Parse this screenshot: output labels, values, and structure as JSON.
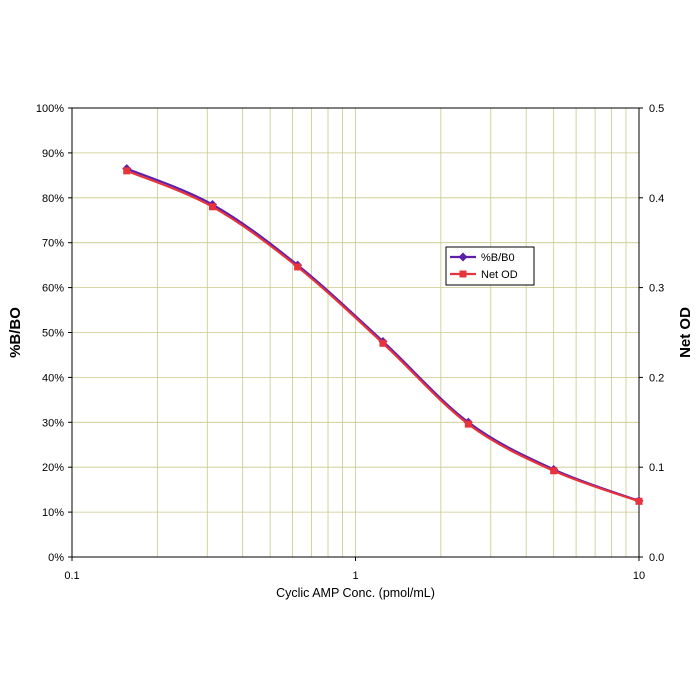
{
  "chart_data": {
    "type": "line",
    "x_scale": "log",
    "xlabel": "Cyclic AMP Conc. (pmol/mL)",
    "ylabel": "%B/BO",
    "y2label": "Net OD",
    "xlim": [
      0.1,
      10
    ],
    "ylim": [
      0,
      100
    ],
    "y2lim": [
      0,
      0.5
    ],
    "grid": true,
    "legend_position": "right-center",
    "x_ticks": [
      {
        "value": 0.1,
        "label": "0.1"
      },
      {
        "value": 1,
        "label": "1"
      },
      {
        "value": 10,
        "label": "10"
      }
    ],
    "y_ticks": [
      {
        "value": 0,
        "label": "0%"
      },
      {
        "value": 10,
        "label": "10%"
      },
      {
        "value": 20,
        "label": "20%"
      },
      {
        "value": 30,
        "label": "30%"
      },
      {
        "value": 40,
        "label": "40%"
      },
      {
        "value": 50,
        "label": "50%"
      },
      {
        "value": 60,
        "label": "60%"
      },
      {
        "value": 70,
        "label": "70%"
      },
      {
        "value": 80,
        "label": "80%"
      },
      {
        "value": 90,
        "label": "90%"
      },
      {
        "value": 100,
        "label": "100%"
      }
    ],
    "y2_ticks": [
      {
        "value": 0,
        "label": "0.0"
      },
      {
        "value": 0.1,
        "label": "0.1"
      },
      {
        "value": 0.2,
        "label": "0.2"
      },
      {
        "value": 0.3,
        "label": "0.3"
      },
      {
        "value": 0.4,
        "label": "0.4"
      },
      {
        "value": 0.5,
        "label": "0.5"
      }
    ],
    "x": [
      0.156,
      0.313,
      0.625,
      1.25,
      2.5,
      5,
      10
    ],
    "series": [
      {
        "name": "%B/B0",
        "axis": "left",
        "marker": "diamond",
        "color": "#5b1fa8",
        "values": [
          86.5,
          78.5,
          65.0,
          48.0,
          30.0,
          19.5,
          12.5
        ]
      },
      {
        "name": "Net OD",
        "axis": "right",
        "marker": "square",
        "color": "#e8323c",
        "values": [
          0.43,
          0.39,
          0.323,
          0.238,
          0.148,
          0.096,
          0.062
        ]
      }
    ],
    "colors": {
      "grid": "#c9c98a",
      "plot_border": "#000000"
    }
  }
}
